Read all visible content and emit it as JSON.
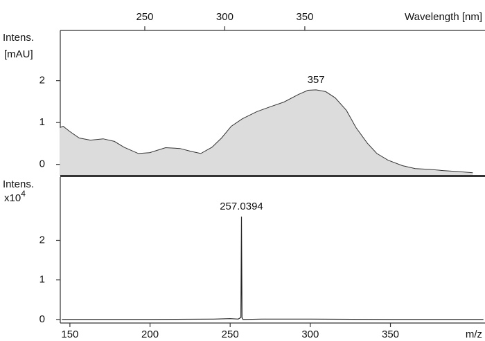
{
  "chart_data": [
    {
      "type": "area",
      "xlabel": "Wavelength [nm]",
      "ylabel": "Intens.",
      "yunit": "[mAU]",
      "x": [
        197,
        199,
        203,
        209,
        216,
        224,
        231,
        237,
        246,
        253,
        263,
        272,
        279,
        285,
        292,
        298,
        304,
        311,
        320,
        328,
        337,
        346,
        352,
        357,
        363,
        369,
        376,
        382,
        389,
        395,
        402,
        411,
        419,
        428,
        437,
        445,
        455
      ],
      "values": [
        0.88,
        0.91,
        0.79,
        0.63,
        0.58,
        0.61,
        0.55,
        0.41,
        0.26,
        0.28,
        0.4,
        0.38,
        0.31,
        0.26,
        0.41,
        0.63,
        0.91,
        1.09,
        1.26,
        1.37,
        1.49,
        1.67,
        1.77,
        1.78,
        1.74,
        1.59,
        1.29,
        0.88,
        0.51,
        0.26,
        0.1,
        -0.03,
        -0.1,
        -0.12,
        -0.15,
        -0.17,
        -0.2
      ],
      "color": "#dcdcdc",
      "line_color": "#333333",
      "xlim": [
        197.2,
        462.6
      ],
      "xticks": [
        250,
        300,
        350
      ],
      "ylim": [
        -0.27,
        3.2
      ],
      "yticks": [
        0,
        1,
        2
      ],
      "annotations": [
        {
          "text": "357",
          "x": 357,
          "y": 1.78
        }
      ]
    },
    {
      "type": "line",
      "xlabel": "m/z",
      "ylabel": "Intens.",
      "yscale_label": "x10",
      "yscale_exponent": "4",
      "x": [
        145,
        200,
        240,
        250,
        255,
        256.7,
        257.0394,
        257.4,
        258,
        270,
        300,
        350,
        408
      ],
      "values": [
        0,
        0,
        0.01,
        0.02,
        0.01,
        0.05,
        2.6,
        0.05,
        0,
        0.01,
        0.01,
        0,
        0
      ],
      "color": "#222222",
      "xlim": [
        144,
        409
      ],
      "xticks": [
        150,
        200,
        250,
        300,
        350
      ],
      "ylim": [
        -0.09,
        3.6
      ],
      "yticks": [
        0,
        1,
        2
      ],
      "annotations": [
        {
          "text": "257.0394",
          "x": 257.0394,
          "y": 2.6
        }
      ]
    }
  ]
}
